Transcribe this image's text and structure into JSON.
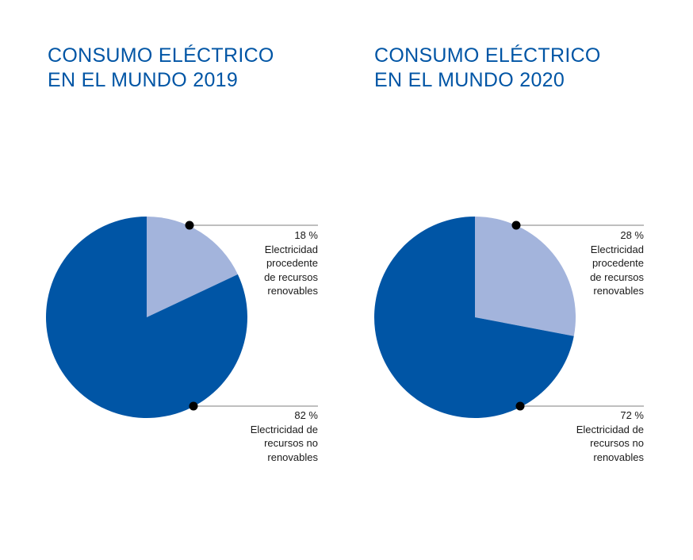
{
  "colors": {
    "title": "#0055a5",
    "non_renewable": "#0055a5",
    "renewable": "#a3b4dc",
    "leader": "#555555",
    "dot": "#000000"
  },
  "chart_data": [
    {
      "type": "pie",
      "title_lines": [
        "CONSUMO ELÉCTRICO",
        "EN EL MUNDO 2019"
      ],
      "slices": [
        {
          "value": 18,
          "percent_label": "18 %",
          "label_lines": [
            "Electricidad",
            "procedente",
            "de recursos",
            "renovables"
          ],
          "color": "#a3b4dc"
        },
        {
          "value": 82,
          "percent_label": "82 %",
          "label_lines": [
            "Electricidad de",
            "recursos no",
            "renovables"
          ],
          "color": "#0055a5"
        }
      ]
    },
    {
      "type": "pie",
      "title_lines": [
        "CONSUMO ELÉCTRICO",
        "EN EL MUNDO 2020"
      ],
      "slices": [
        {
          "value": 28,
          "percent_label": "28 %",
          "label_lines": [
            "Electricidad",
            "procedente",
            "de recursos",
            "renovables"
          ],
          "color": "#a3b4dc"
        },
        {
          "value": 72,
          "percent_label": "72 %",
          "label_lines": [
            "Electricidad de",
            "recursos no",
            "renovables"
          ],
          "color": "#0055a5"
        }
      ]
    }
  ]
}
